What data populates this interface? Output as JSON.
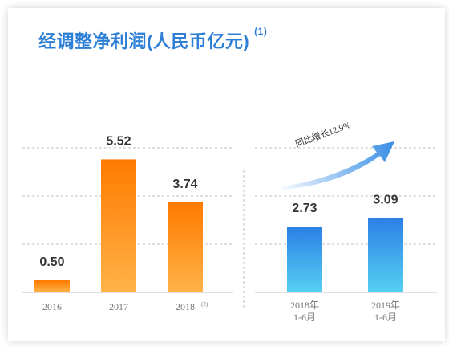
{
  "colors": {
    "title": "#2e7fd6",
    "annual_bar_top": "#ff7a00",
    "annual_bar_bottom": "#ffb347",
    "half_bar_top": "#2c80e6",
    "half_bar_bottom": "#55d0f2",
    "grid": "#bfbfbf",
    "arrow": "#3a8ee6"
  },
  "title": {
    "text": "经调整净利润(人民币亿元)",
    "note": "(1)"
  },
  "chart_data": [
    {
      "type": "bar",
      "categories": [
        "2016",
        "2017",
        "2018"
      ],
      "category_notes": [
        "",
        "",
        "(2)"
      ],
      "values": [
        0.5,
        5.52,
        3.74
      ],
      "value_labels": [
        "0.50",
        "5.52",
        "3.74"
      ],
      "ylim": [
        0,
        6
      ],
      "grid": true
    },
    {
      "type": "bar",
      "categories": [
        [
          "2018年",
          "1-6月"
        ],
        [
          "2019年",
          "1-6月"
        ]
      ],
      "values": [
        2.73,
        3.09
      ],
      "value_labels": [
        "2.73",
        "3.09"
      ],
      "ylim": [
        0,
        6
      ],
      "grid": true,
      "annotation": "同比增长12.9%"
    }
  ]
}
